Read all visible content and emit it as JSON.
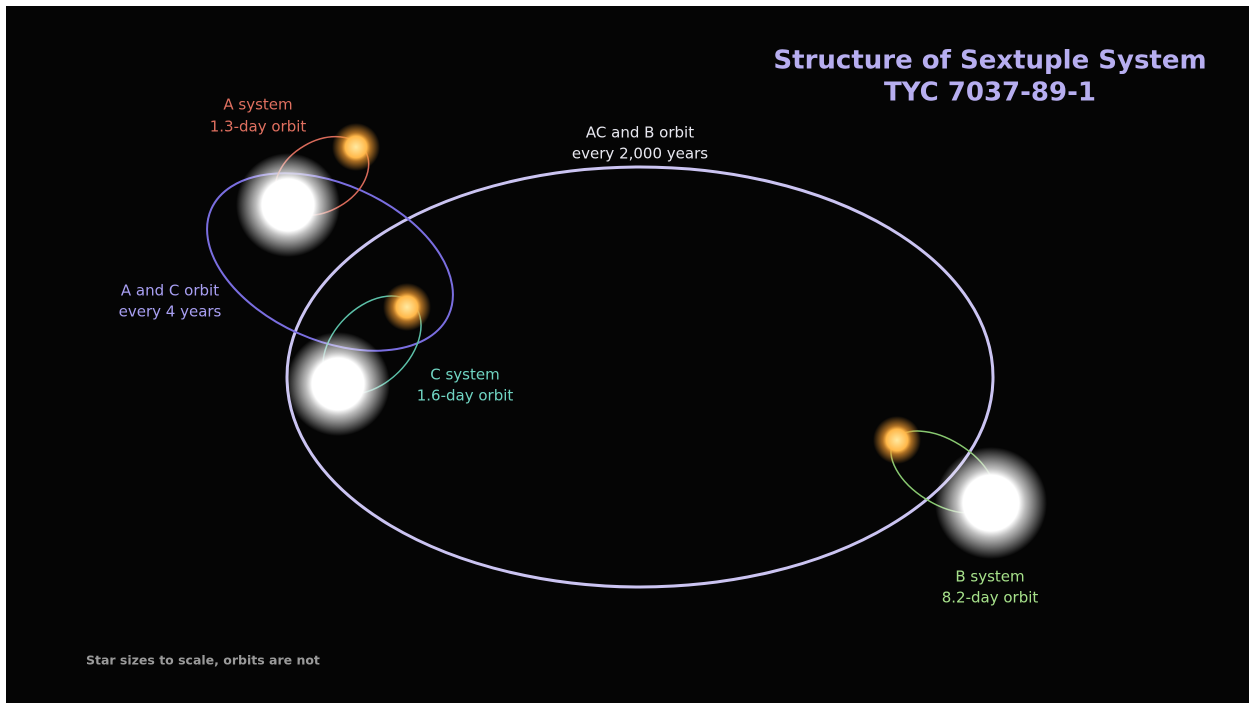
{
  "title": {
    "line1": "Structure of Sextuple System",
    "line2": "TYC 7037-89-1"
  },
  "labels": {
    "a_system": [
      "A system",
      "1.3-day orbit"
    ],
    "ac_b_orbit": [
      "AC and B orbit",
      "every 2,000 years"
    ],
    "a_c_orbit": [
      "A and C orbit",
      "every 4 years"
    ],
    "c_system": [
      "C system",
      "1.6-day orbit"
    ],
    "b_system": [
      "B system",
      "8.2-day orbit"
    ]
  },
  "footnote": "Star sizes to scale, orbits are not"
}
